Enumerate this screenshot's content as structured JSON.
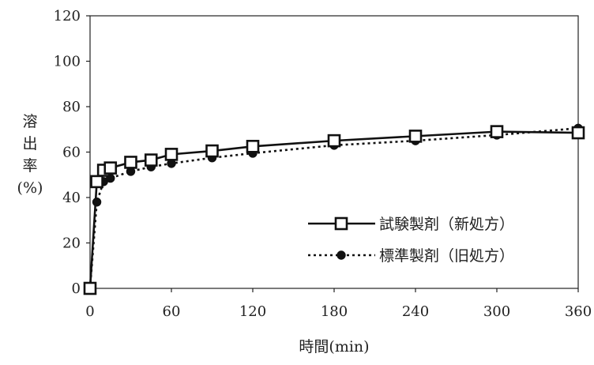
{
  "chart_data": {
    "type": "line",
    "title": "",
    "xlabel": "時間(min)",
    "ylabel_chars": [
      "溶",
      "出",
      "率",
      "(%)"
    ],
    "xlim": [
      0,
      360
    ],
    "ylim": [
      0,
      120
    ],
    "x_ticks": [
      0,
      60,
      120,
      180,
      240,
      300,
      360
    ],
    "y_ticks": [
      0,
      20,
      40,
      60,
      80,
      100,
      120
    ],
    "grid": false,
    "legend_position": "lower-right",
    "series": [
      {
        "name": "試験製剤（新処方）",
        "marker": "open-square",
        "line": "solid",
        "x": [
          0,
          5,
          10,
          15,
          30,
          45,
          60,
          90,
          120,
          180,
          240,
          300,
          360
        ],
        "y": [
          0,
          47,
          52,
          53,
          55.5,
          56.5,
          59,
          60.5,
          62.5,
          65,
          67,
          69,
          68.5
        ]
      },
      {
        "name": "標準製剤（旧処方）",
        "marker": "filled-circle",
        "line": "dotted",
        "x": [
          0,
          5,
          10,
          15,
          30,
          45,
          60,
          90,
          120,
          180,
          240,
          300,
          360
        ],
        "y": [
          0,
          38,
          47,
          48.5,
          51.5,
          53.5,
          55,
          57.5,
          59.5,
          63,
          65,
          67.5,
          70.5
        ]
      }
    ]
  }
}
